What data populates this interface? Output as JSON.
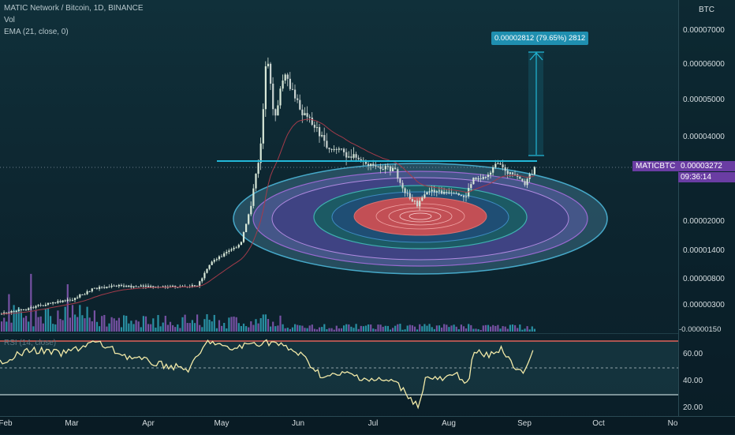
{
  "header": {
    "title": "MATIC Network / Bitcoin, 1D, BINANCE",
    "vol_label": "Vol",
    "ema_label": "EMA (21, close, 0)",
    "rsi_label": "RSI (14, close)"
  },
  "price_axis": {
    "currency": "BTC",
    "labels": [
      "0.00007000",
      "0.00006000",
      "0.00005000",
      "0.00004000",
      "0.00002000",
      "0.00001400",
      "0.00000800",
      "0.00000300",
      "-0.00000150"
    ],
    "rsi_labels": [
      "60.00",
      "40.00",
      "20.00"
    ]
  },
  "symbol_tag": {
    "symbol": "MATICBTC",
    "price": "0.00003272",
    "countdown": "09:36:14"
  },
  "measure_tag": {
    "text": "0.00002812 (79.65%) 2812"
  },
  "time_axis": {
    "labels": [
      "Feb",
      "Mar",
      "Apr",
      "May",
      "Jun",
      "Jul",
      "Aug",
      "Sep",
      "Oct",
      "No"
    ]
  },
  "colors": {
    "bull": "#d8e8d8",
    "bear": "#c8d2d0",
    "ema": "#a33b4a",
    "support_line": "#22b8d8",
    "measure": "#22b8d8",
    "volume": "#8a5ab8",
    "volume_teal": "#2fa3b8",
    "rsi_line": "#f2eaa8",
    "rsi_upper": "#e0625a",
    "rsi_lower": "#9fb3b8",
    "tag_bg": "#6a3da3"
  }
}
